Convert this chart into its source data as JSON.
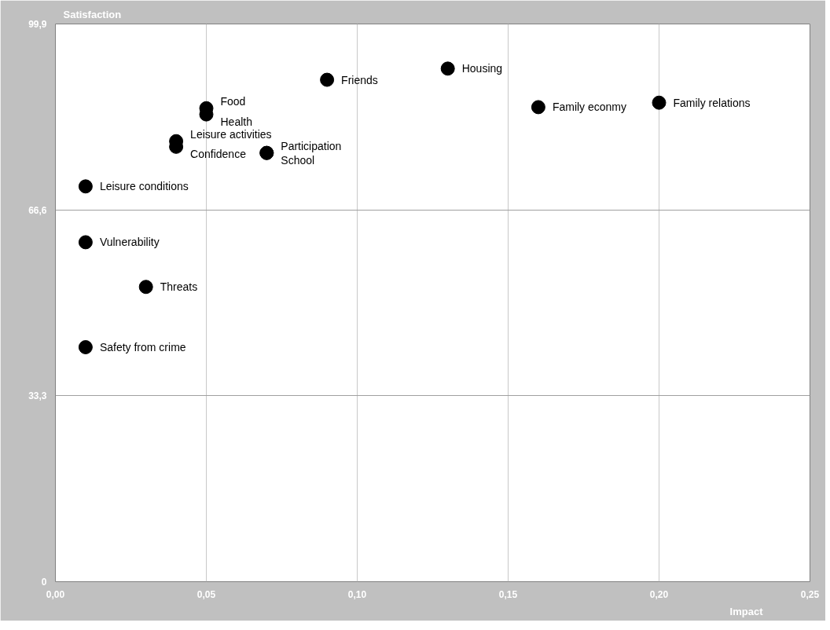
{
  "chart_data": {
    "type": "scatter",
    "xlabel": "Impact",
    "ylabel": "Satisfaction",
    "x": [
      0.2,
      0.16,
      0.13,
      0.09,
      0.05,
      0.05,
      0.04,
      0.04,
      0.07,
      0.07,
      0.01,
      0.01,
      0.03,
      0.01
    ],
    "series": [
      {
        "color": "#000000",
        "values": [
          85.8,
          85.0,
          91.9,
          89.9,
          84.8,
          83.7,
          78.9,
          77.9,
          76.8,
          76.8,
          70.8,
          60.8,
          52.8,
          42.0
        ]
      }
    ],
    "annotations": [
      {
        "text": "Family relations",
        "x": 0.2,
        "y": 85.8
      },
      {
        "text": "Family econmy",
        "x": 0.16,
        "y": 85.0
      },
      {
        "text": "Housing",
        "x": 0.13,
        "y": 91.9
      },
      {
        "text": "Friends",
        "x": 0.09,
        "y": 89.9
      },
      {
        "text": "Food",
        "x": 0.05,
        "y": 84.8
      },
      {
        "text": "Health",
        "x": 0.05,
        "y": 83.7
      },
      {
        "text": "Leisure activities",
        "x": 0.04,
        "y": 78.9
      },
      {
        "text": "Confidence",
        "x": 0.04,
        "y": 77.9
      },
      {
        "text": "Participation",
        "x": 0.07,
        "y": 76.8
      },
      {
        "text": "School",
        "x": 0.07,
        "y": 76.8
      },
      {
        "text": "Leisure conditions",
        "x": 0.01,
        "y": 70.8
      },
      {
        "text": "Vulnerability",
        "x": 0.01,
        "y": 60.8
      },
      {
        "text": "Threats",
        "x": 0.03,
        "y": 52.8
      },
      {
        "text": "Safety from crime",
        "x": 0.01,
        "y": 42.0
      }
    ],
    "xlim": [
      0,
      0.25
    ],
    "ylim": [
      0,
      99.9
    ],
    "xticks": [
      {
        "value": 0,
        "label": "0,00"
      },
      {
        "value": 0.05,
        "label": "0,05"
      },
      {
        "value": 0.1,
        "label": "0,10"
      },
      {
        "value": 0.15,
        "label": "0,15"
      },
      {
        "value": 0.2,
        "label": "0,20"
      },
      {
        "value": 0.25,
        "label": "0,25"
      }
    ],
    "yticks": [
      0,
      {
        "value": 33.3,
        "label": "33,3"
      },
      {
        "value": 66.6,
        "label": "66,6"
      },
      {
        "value": 99.9,
        "label": "99,9"
      }
    ],
    "grid": true,
    "marker": "circle"
  }
}
